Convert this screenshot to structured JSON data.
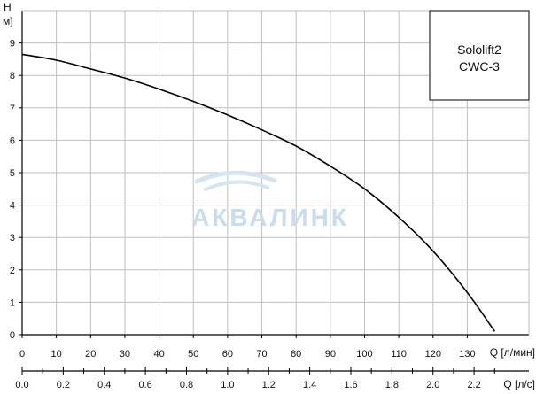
{
  "chart_data": {
    "type": "line",
    "title": "",
    "ylabel": "H м]",
    "ylabel_top": "H",
    "ylabel_unit": "м]",
    "xlabel_primary": "Q [л/мин]",
    "xlabel_secondary": "Q [л/с]",
    "xlim": [
      0,
      148
    ],
    "ylim": [
      0,
      10
    ],
    "x_ticks": [
      "0",
      "10",
      "20",
      "30",
      "40",
      "50",
      "60",
      "70",
      "80",
      "90",
      "100",
      "110",
      "120",
      "130"
    ],
    "x_tick_values": [
      0,
      10,
      20,
      30,
      40,
      50,
      60,
      70,
      80,
      90,
      100,
      110,
      120,
      130
    ],
    "y_ticks": [
      "0",
      "1",
      "2",
      "3",
      "4",
      "5",
      "6",
      "7",
      "8",
      "9"
    ],
    "y_tick_values": [
      0,
      1,
      2,
      3,
      4,
      5,
      6,
      7,
      8,
      9
    ],
    "x2_ticks": [
      "0.0",
      "0.2",
      "0.4",
      "0.6",
      "0.8",
      "1.0",
      "1.2",
      "1.4",
      "1.6",
      "1.8",
      "2.0",
      "2.2"
    ],
    "x2_tick_values": [
      0.0,
      0.2,
      0.4,
      0.6,
      0.8,
      1.0,
      1.2,
      1.4,
      1.6,
      1.8,
      2.0,
      2.2
    ],
    "x2_lim": [
      0,
      2.467
    ],
    "grid": true,
    "legend_lines": [
      "Sololift2",
      "CWC-3"
    ],
    "legend_placement": "top-right",
    "series": [
      {
        "x": [
          0,
          10,
          20,
          30,
          40,
          50,
          60,
          70,
          80,
          90,
          100,
          110,
          120,
          130,
          138
        ],
        "y": [
          8.65,
          8.47,
          8.2,
          7.92,
          7.58,
          7.2,
          6.78,
          6.32,
          5.82,
          5.2,
          4.5,
          3.62,
          2.58,
          1.3,
          0.1
        ]
      }
    ],
    "colors": {
      "line": "#000000",
      "grid": "#bfbfbf",
      "axis": "#000000"
    }
  },
  "watermark": {
    "text": "АКВАЛИНК"
  }
}
